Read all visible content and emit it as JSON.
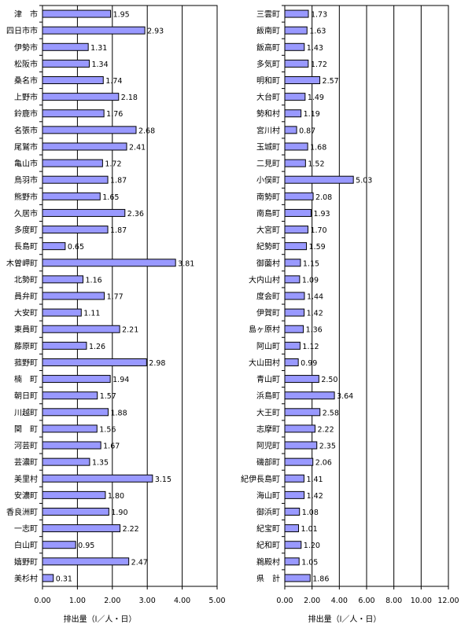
{
  "chart_data": [
    {
      "type": "bar",
      "orientation": "horizontal",
      "categories": [
        "津　市",
        "四日市市",
        "伊勢市",
        "松阪市",
        "桑名市",
        "上野市",
        "鈴鹿市",
        "名張市",
        "尾鷲市",
        "亀山市",
        "鳥羽市",
        "熊野市",
        "久居市",
        "多度町",
        "長島町",
        "木曽岬町",
        "北勢町",
        "員弁町",
        "大安町",
        "東員町",
        "藤原町",
        "菰野町",
        "楠　町",
        "朝日町",
        "川越町",
        "関　町",
        "河芸町",
        "芸濃町",
        "美里村",
        "安濃町",
        "香良洲町",
        "一志町",
        "白山町",
        "嬉野町",
        "美杉村"
      ],
      "values": [
        1.95,
        2.93,
        1.31,
        1.34,
        1.74,
        2.18,
        1.76,
        2.68,
        2.41,
        1.72,
        1.87,
        1.65,
        2.36,
        1.87,
        0.65,
        3.81,
        1.16,
        1.77,
        1.11,
        2.21,
        1.26,
        2.98,
        1.94,
        1.57,
        1.88,
        1.56,
        1.67,
        1.35,
        3.15,
        1.8,
        1.9,
        2.22,
        0.95,
        2.47,
        0.31
      ],
      "value_labels": [
        "1.95",
        "2.93",
        "1.31",
        "1.34",
        "1.74",
        "2.18",
        "1.76",
        "2.68",
        "2.41",
        "1.72",
        "1.87",
        "1.65",
        "2.36",
        "1.87",
        "0.65",
        "3.81",
        "1.16",
        "1.77",
        "1.11",
        "2.21",
        "1.26",
        "2.98",
        "1.94",
        "1.57",
        "1.88",
        "1.56",
        "1.67",
        "1.35",
        "3.15",
        "1.80",
        "1.90",
        "2.22",
        "0.95",
        "2.47",
        "0.31"
      ],
      "xlim": [
        0,
        5
      ],
      "xticks": [
        "0.00",
        "1.00",
        "2.00",
        "3.00",
        "4.00",
        "5.00"
      ],
      "xlabel": "排出量（l／人・日）",
      "grid": true,
      "bar_color": "#9999ff"
    },
    {
      "type": "bar",
      "orientation": "horizontal",
      "categories": [
        "三雲町",
        "飯南町",
        "飯高町",
        "多気町",
        "明和町",
        "大台町",
        "勢和村",
        "宮川村",
        "玉城町",
        "二見町",
        "小俣町",
        "南勢町",
        "南島町",
        "大宮町",
        "紀勢町",
        "御薗村",
        "大内山村",
        "度会町",
        "伊賀町",
        "島ヶ原村",
        "阿山町",
        "大山田村",
        "青山町",
        "浜島町",
        "大王町",
        "志摩町",
        "阿児町",
        "磯部町",
        "紀伊長島町",
        "海山町",
        "御浜町",
        "紀宝町",
        "紀和町",
        "鵜殿村",
        "県　計"
      ],
      "values": [
        1.73,
        1.63,
        1.43,
        1.72,
        2.57,
        1.49,
        1.19,
        0.87,
        1.68,
        1.52,
        5.03,
        2.08,
        1.93,
        1.7,
        1.59,
        1.15,
        1.09,
        1.44,
        1.42,
        1.36,
        1.12,
        0.99,
        2.5,
        3.64,
        2.58,
        2.22,
        2.35,
        2.06,
        1.41,
        1.42,
        1.08,
        1.01,
        1.2,
        1.05,
        1.86
      ],
      "value_labels": [
        "1.73",
        "1.63",
        "1.43",
        "1.72",
        "2.57",
        "1.49",
        "1.19",
        "0.87",
        "1.68",
        "1.52",
        "5.03",
        "2.08",
        "1.93",
        "1.70",
        "1.59",
        "1.15",
        "1.09",
        "1.44",
        "1.42",
        "1.36",
        "1.12",
        "0.99",
        "2.50",
        "3.64",
        "2.58",
        "2.22",
        "2.35",
        "2.06",
        "1.41",
        "1.42",
        "1.08",
        "1.01",
        "1.20",
        "1.05",
        "1.86"
      ],
      "xlim": [
        0,
        12
      ],
      "xticks": [
        "0.00",
        "2.00",
        "4.00",
        "6.00",
        "8.00",
        "10.00",
        "12.00"
      ],
      "xlabel": "排出量（l／人・日）",
      "grid": true,
      "bar_color": "#9999ff"
    }
  ]
}
